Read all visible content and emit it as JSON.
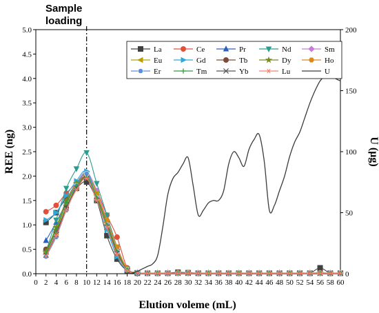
{
  "annotation": {
    "line1": "Sample",
    "line2": "loading"
  },
  "chart_data": {
    "type": "line",
    "xlabel": "Elution voleme (mL)",
    "ylabel_left": "REE (ng)",
    "ylabel_right": "U (μg)",
    "xlim": [
      0,
      60
    ],
    "ylim_left": [
      0,
      5.0
    ],
    "ylim_right": [
      0,
      200
    ],
    "xticks": [
      0,
      2,
      4,
      6,
      8,
      10,
      12,
      14,
      16,
      18,
      20,
      22,
      24,
      26,
      28,
      30,
      32,
      34,
      36,
      38,
      40,
      42,
      44,
      46,
      48,
      50,
      52,
      54,
      56,
      58,
      60
    ],
    "yticks_left": [
      "0.0",
      "0.5",
      "1.0",
      "1.5",
      "2.0",
      "2.5",
      "3.0",
      "3.5",
      "4.0",
      "4.5",
      "5.0"
    ],
    "yticks_right": [
      "0",
      "50",
      "100",
      "150",
      "200"
    ],
    "vline_x": 10,
    "legend_position": "top-right",
    "x": [
      2,
      4,
      6,
      8,
      10,
      12,
      14,
      16,
      18,
      20,
      22,
      24,
      26,
      28,
      30,
      32,
      34,
      36,
      38,
      40,
      42,
      44,
      46,
      48,
      50,
      52,
      54,
      56,
      58,
      60
    ],
    "series": [
      {
        "name": "La",
        "axis": "left",
        "color": "#404040",
        "marker": "square",
        "values": [
          1.05,
          1.25,
          1.55,
          1.75,
          1.88,
          1.5,
          0.78,
          0.3,
          0.06,
          0.01,
          0.01,
          0.01,
          0.01,
          0.03,
          0.02,
          0.01,
          0.01,
          0.01,
          0.01,
          0.01,
          0.01,
          0.01,
          0.01,
          0.01,
          0.01,
          0.01,
          0.01,
          0.12,
          0.01,
          0.01
        ]
      },
      {
        "name": "Ce",
        "axis": "left",
        "color": "#e0503a",
        "marker": "circle",
        "values": [
          1.27,
          1.4,
          1.65,
          1.85,
          2.0,
          1.7,
          1.2,
          0.75,
          0.12,
          0.02,
          0.01,
          0.01,
          0.01,
          0.02,
          0.02,
          0.01,
          0.01,
          0.01,
          0.01,
          0.01,
          0.01,
          0.01,
          0.01,
          0.01,
          0.01,
          0.01,
          0.01,
          0.02,
          0.01,
          0.01
        ]
      },
      {
        "name": "Pr",
        "axis": "left",
        "color": "#2c5fbf",
        "marker": "triangle-up",
        "values": [
          0.68,
          1.05,
          1.45,
          1.8,
          1.98,
          1.6,
          0.95,
          0.4,
          0.08,
          0.02,
          0.01,
          0.01,
          0.01,
          0.01,
          0.01,
          0.01,
          0.01,
          0.01,
          0.01,
          0.01,
          0.01,
          0.01,
          0.01,
          0.01,
          0.01,
          0.01,
          0.01,
          0.01,
          0.01,
          0.01
        ]
      },
      {
        "name": "Nd",
        "axis": "left",
        "color": "#2a9d8f",
        "marker": "triangle-down",
        "values": [
          0.45,
          1.1,
          1.75,
          2.15,
          2.48,
          1.85,
          1.2,
          0.55,
          0.1,
          0.02,
          0.01,
          0.01,
          0.01,
          0.01,
          0.01,
          0.01,
          0.01,
          0.01,
          0.01,
          0.01,
          0.01,
          0.01,
          0.01,
          0.01,
          0.01,
          0.01,
          0.01,
          0.01,
          0.01,
          0.01
        ]
      },
      {
        "name": "Sm",
        "axis": "left",
        "color": "#c77dd9",
        "marker": "diamond",
        "values": [
          0.4,
          0.85,
          1.45,
          1.85,
          2.08,
          1.7,
          1.1,
          0.5,
          0.09,
          0.02,
          0.01,
          0.01,
          0.01,
          0.01,
          0.01,
          0.01,
          0.01,
          0.01,
          0.01,
          0.01,
          0.01,
          0.01,
          0.01,
          0.01,
          0.01,
          0.01,
          0.01,
          0.01,
          0.01,
          0.01
        ]
      },
      {
        "name": "Eu",
        "axis": "left",
        "color": "#b8a000",
        "marker": "triangle-left",
        "values": [
          0.45,
          0.9,
          1.4,
          1.8,
          2.05,
          1.65,
          1.05,
          0.45,
          0.08,
          0.02,
          0.01,
          0.01,
          0.01,
          0.01,
          0.01,
          0.01,
          0.01,
          0.01,
          0.01,
          0.01,
          0.01,
          0.01,
          0.01,
          0.01,
          0.01,
          0.01,
          0.01,
          0.01,
          0.01,
          0.01
        ]
      },
      {
        "name": "Gd",
        "axis": "left",
        "color": "#2fa8d8",
        "marker": "triangle-right",
        "values": [
          1.1,
          1.25,
          1.6,
          1.9,
          2.1,
          1.55,
          0.9,
          0.35,
          0.07,
          0.02,
          0.01,
          0.01,
          0.01,
          0.01,
          0.01,
          0.01,
          0.01,
          0.01,
          0.01,
          0.01,
          0.01,
          0.01,
          0.01,
          0.01,
          0.01,
          0.01,
          0.01,
          0.01,
          0.01,
          0.01
        ]
      },
      {
        "name": "Tb",
        "axis": "left",
        "color": "#7a4a3a",
        "marker": "circle",
        "values": [
          0.5,
          0.85,
          1.35,
          1.75,
          1.98,
          1.55,
          1.0,
          0.45,
          0.08,
          0.02,
          0.01,
          0.01,
          0.01,
          0.01,
          0.01,
          0.01,
          0.01,
          0.01,
          0.01,
          0.01,
          0.01,
          0.01,
          0.01,
          0.01,
          0.01,
          0.01,
          0.01,
          0.01,
          0.01,
          0.01
        ]
      },
      {
        "name": "Dy",
        "axis": "left",
        "color": "#7a8a1a",
        "marker": "star",
        "values": [
          0.45,
          0.95,
          1.5,
          1.85,
          2.02,
          1.6,
          1.05,
          0.48,
          0.09,
          0.02,
          0.01,
          0.01,
          0.01,
          0.01,
          0.01,
          0.01,
          0.01,
          0.01,
          0.01,
          0.01,
          0.01,
          0.01,
          0.01,
          0.01,
          0.01,
          0.01,
          0.01,
          0.01,
          0.01,
          0.01
        ]
      },
      {
        "name": "Ho",
        "axis": "left",
        "color": "#d98a1a",
        "marker": "hexagon",
        "values": [
          0.4,
          0.8,
          1.3,
          1.75,
          2.0,
          1.6,
          1.1,
          0.55,
          0.1,
          0.02,
          0.01,
          0.01,
          0.01,
          0.01,
          0.01,
          0.01,
          0.01,
          0.01,
          0.01,
          0.01,
          0.01,
          0.01,
          0.01,
          0.01,
          0.01,
          0.01,
          0.01,
          0.01,
          0.01,
          0.01
        ]
      },
      {
        "name": "Er",
        "axis": "left",
        "color": "#5b8fd9",
        "marker": "circle-half",
        "values": [
          0.35,
          0.75,
          1.3,
          1.8,
          2.05,
          1.55,
          1.0,
          0.45,
          0.08,
          0.02,
          0.01,
          0.01,
          0.01,
          0.01,
          0.01,
          0.01,
          0.01,
          0.01,
          0.01,
          0.01,
          0.01,
          0.01,
          0.01,
          0.01,
          0.01,
          0.01,
          0.01,
          0.01,
          0.01,
          0.01
        ]
      },
      {
        "name": "Tm",
        "axis": "left",
        "color": "#2e9e3e",
        "marker": "plus",
        "values": [
          0.42,
          0.9,
          1.45,
          1.8,
          1.98,
          1.55,
          1.0,
          0.45,
          0.08,
          0.02,
          0.01,
          0.01,
          0.01,
          0.01,
          0.01,
          0.01,
          0.01,
          0.01,
          0.01,
          0.01,
          0.01,
          0.01,
          0.01,
          0.01,
          0.01,
          0.01,
          0.01,
          0.01,
          0.01,
          0.01
        ]
      },
      {
        "name": "Yb",
        "axis": "left",
        "color": "#555555",
        "marker": "x",
        "values": [
          0.38,
          0.8,
          1.35,
          1.75,
          1.95,
          1.5,
          0.95,
          0.42,
          0.07,
          0.02,
          0.01,
          0.01,
          0.01,
          0.01,
          0.01,
          0.01,
          0.01,
          0.01,
          0.01,
          0.01,
          0.01,
          0.01,
          0.01,
          0.01,
          0.01,
          0.01,
          0.01,
          0.01,
          0.01,
          0.01
        ]
      },
      {
        "name": "Lu",
        "axis": "left",
        "color": "#f08070",
        "marker": "asterisk",
        "values": [
          0.36,
          0.78,
          1.3,
          1.72,
          1.95,
          1.5,
          0.95,
          0.4,
          0.07,
          0.02,
          0.01,
          0.01,
          0.01,
          0.01,
          0.01,
          0.01,
          0.01,
          0.01,
          0.01,
          0.01,
          0.01,
          0.01,
          0.01,
          0.01,
          0.01,
          0.01,
          0.01,
          0.01,
          0.01,
          0.01
        ]
      },
      {
        "name": "U",
        "axis": "right",
        "color": "#3a3a3a",
        "marker": "none",
        "x": [
          18,
          19,
          20,
          21,
          22,
          23,
          24,
          25,
          26,
          27,
          28,
          29,
          30,
          31,
          32,
          33,
          34,
          35,
          36,
          37,
          38,
          39,
          40,
          41,
          42,
          43,
          44,
          45,
          46,
          47,
          48,
          49,
          50,
          51,
          52,
          53,
          54,
          55,
          56,
          57,
          58,
          59,
          60
        ],
        "values": [
          0,
          0.5,
          2,
          4,
          6,
          8,
          15,
          38,
          65,
          78,
          83,
          90,
          95,
          72,
          48,
          52,
          58,
          60,
          60,
          68,
          90,
          100,
          95,
          88,
          102,
          110,
          114,
          92,
          52,
          56,
          68,
          80,
          96,
          108,
          116,
          128,
          140,
          150,
          158,
          162,
          163,
          160,
          158
        ]
      }
    ]
  }
}
